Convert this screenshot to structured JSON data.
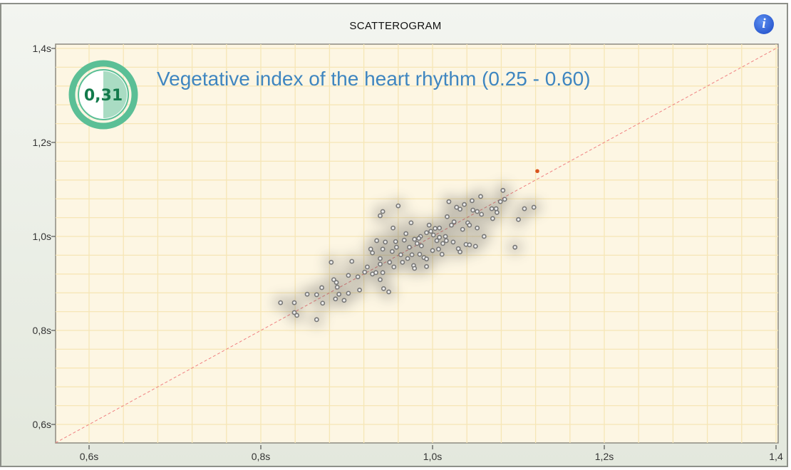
{
  "header": {
    "title": "SCATTEROGRAM",
    "info_icon": "info-icon"
  },
  "indicator": {
    "value": "0,31",
    "label": "Vegetative index of the heart rhythm (0.25 - 0.60)",
    "fraction": 0.31,
    "color": "#5bbf96"
  },
  "chart_data": {
    "type": "scatter",
    "title": "SCATTEROGRAM",
    "xlim": [
      0.56,
      1.41
    ],
    "ylim": [
      0.55,
      1.41
    ],
    "x_ticks": [
      0.6,
      0.8,
      1.0,
      1.2,
      1.4
    ],
    "x_tick_labels": [
      "0,6s",
      "0,8s",
      "1,0s",
      "1,2s",
      "1,4"
    ],
    "y_ticks": [
      1.4,
      1.2,
      1.0,
      0.8,
      0.6
    ],
    "y_tick_labels": [
      "1,4s",
      "1,2s",
      "1,0s",
      "0,8s",
      "0,6s"
    ],
    "grid": true,
    "diagonal": "y = x",
    "colors": {
      "point": "#777777",
      "highlight": "#d9531e",
      "diagonal": "#f08080",
      "background": "#fdf6e3",
      "grid": "#f6e6b6"
    },
    "points": [
      [
        0.823,
        0.859
      ],
      [
        0.839,
        0.859
      ],
      [
        0.839,
        0.838
      ],
      [
        0.842,
        0.832
      ],
      [
        0.865,
        0.823
      ],
      [
        0.854,
        0.877
      ],
      [
        0.865,
        0.876
      ],
      [
        0.871,
        0.891
      ],
      [
        0.872,
        0.858
      ],
      [
        0.882,
        0.945
      ],
      [
        0.885,
        0.908
      ],
      [
        0.888,
        0.902
      ],
      [
        0.889,
        0.892
      ],
      [
        0.891,
        0.877
      ],
      [
        0.887,
        0.867
      ],
      [
        0.897,
        0.864
      ],
      [
        0.902,
        0.879
      ],
      [
        0.902,
        0.917
      ],
      [
        0.906,
        0.947
      ],
      [
        0.913,
        0.914
      ],
      [
        0.915,
        0.886
      ],
      [
        0.921,
        0.924
      ],
      [
        0.924,
        0.935
      ],
      [
        0.928,
        0.973
      ],
      [
        0.93,
        0.965
      ],
      [
        0.93,
        0.92
      ],
      [
        0.934,
        0.923
      ],
      [
        0.939,
        0.953
      ],
      [
        0.939,
        0.941
      ],
      [
        0.942,
        0.923
      ],
      [
        0.939,
        0.908
      ],
      [
        0.935,
        0.991
      ],
      [
        0.945,
        0.988
      ],
      [
        0.942,
        0.973
      ],
      [
        0.939,
        1.044
      ],
      [
        0.942,
        1.053
      ],
      [
        0.954,
        1.018
      ],
      [
        0.96,
        1.065
      ],
      [
        0.943,
        0.889
      ],
      [
        0.949,
        0.882
      ],
      [
        0.95,
        0.945
      ],
      [
        0.955,
        0.935
      ],
      [
        0.957,
        0.989
      ],
      [
        0.953,
        0.968
      ],
      [
        0.958,
        0.977
      ],
      [
        0.963,
        0.961
      ],
      [
        0.965,
        0.945
      ],
      [
        0.967,
        0.992
      ],
      [
        0.969,
        1.006
      ],
      [
        0.971,
        0.953
      ],
      [
        0.973,
        0.977
      ],
      [
        0.975,
        1.029
      ],
      [
        0.976,
        0.961
      ],
      [
        0.978,
        0.938
      ],
      [
        0.979,
        0.932
      ],
      [
        0.979,
        0.994
      ],
      [
        0.982,
        0.985
      ],
      [
        0.986,
        1.0
      ],
      [
        0.985,
        0.962
      ],
      [
        0.987,
        0.98
      ],
      [
        0.99,
        0.955
      ],
      [
        0.993,
        0.952
      ],
      [
        0.993,
        0.936
      ],
      [
        0.996,
        1.024
      ],
      [
        0.998,
        1.011
      ],
      [
        1.0,
        0.97
      ],
      [
        1.001,
        1.003
      ],
      [
        1.003,
        1.017
      ],
      [
        1.005,
        0.991
      ],
      [
        1.007,
        0.973
      ],
      [
        1.008,
        0.998
      ],
      [
        1.008,
        1.018
      ],
      [
        1.011,
        0.962
      ],
      [
        1.012,
        0.985
      ],
      [
        1.015,
        1.0
      ],
      [
        1.017,
        1.042
      ],
      [
        1.019,
        1.074
      ],
      [
        1.022,
        1.024
      ],
      [
        1.024,
        0.988
      ],
      [
        1.025,
        1.031
      ],
      [
        1.028,
        1.062
      ],
      [
        1.03,
        0.974
      ],
      [
        1.032,
        0.967
      ],
      [
        1.032,
        1.058
      ],
      [
        1.035,
        1.015
      ],
      [
        1.037,
        1.068
      ],
      [
        1.039,
        0.983
      ],
      [
        1.041,
        1.029
      ],
      [
        1.043,
        1.024
      ],
      [
        1.043,
        0.982
      ],
      [
        1.046,
        1.076
      ],
      [
        1.047,
        1.056
      ],
      [
        1.05,
        0.979
      ],
      [
        1.052,
        1.053
      ],
      [
        1.052,
        1.018
      ],
      [
        1.056,
        1.085
      ],
      [
        1.057,
        1.047
      ],
      [
        1.06,
        1.0
      ],
      [
        1.069,
        1.059
      ],
      [
        1.07,
        1.038
      ],
      [
        1.074,
        1.059
      ],
      [
        1.075,
        1.051
      ],
      [
        1.079,
        1.074
      ],
      [
        1.082,
        1.098
      ],
      [
        1.084,
        1.079
      ],
      [
        1.096,
        0.977
      ],
      [
        1.1,
        1.036
      ],
      [
        1.107,
        1.059
      ],
      [
        1.118,
        1.062
      ],
      [
        1.016,
        0.991
      ],
      [
        0.984,
        0.996
      ],
      [
        0.993,
        1.008
      ]
    ],
    "highlight_point": [
      1.122,
      1.139
    ]
  }
}
